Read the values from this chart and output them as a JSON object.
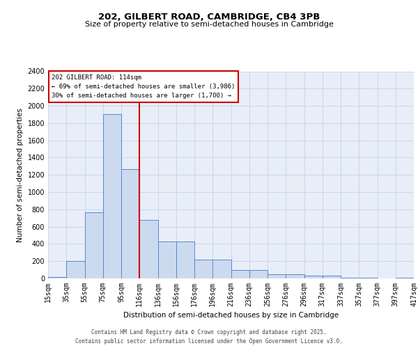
{
  "title1": "202, GILBERT ROAD, CAMBRIDGE, CB4 3PB",
  "title2": "Size of property relative to semi-detached houses in Cambridge",
  "xlabel": "Distribution of semi-detached houses by size in Cambridge",
  "ylabel": "Number of semi-detached properties",
  "bins": [
    "15sqm",
    "35sqm",
    "55sqm",
    "75sqm",
    "95sqm",
    "116sqm",
    "136sqm",
    "156sqm",
    "176sqm",
    "196sqm",
    "216sqm",
    "236sqm",
    "256sqm",
    "276sqm",
    "296sqm",
    "317sqm",
    "337sqm",
    "357sqm",
    "377sqm",
    "397sqm",
    "417sqm"
  ],
  "bar_heights": [
    20,
    200,
    770,
    1900,
    1270,
    680,
    430,
    430,
    215,
    215,
    100,
    100,
    50,
    50,
    30,
    30,
    10,
    10,
    0,
    10,
    0
  ],
  "bar_color": "#ccdaf0",
  "bar_edge_color": "#5588cc",
  "grid_color": "#ccd8ee",
  "background_color": "#e8eef8",
  "vline_x": 5,
  "vline_color": "#cc0000",
  "annotation_text": "202 GILBERT ROAD: 114sqm\n← 69% of semi-detached houses are smaller (3,986)\n30% of semi-detached houses are larger (1,700) →",
  "annotation_box_color": "white",
  "annotation_edge_color": "#cc0000",
  "ylim": [
    0,
    2400
  ],
  "yticks": [
    0,
    200,
    400,
    600,
    800,
    1000,
    1200,
    1400,
    1600,
    1800,
    2000,
    2200,
    2400
  ],
  "footer1": "Contains HM Land Registry data © Crown copyright and database right 2025.",
  "footer2": "Contains public sector information licensed under the Open Government Licence v3.0."
}
